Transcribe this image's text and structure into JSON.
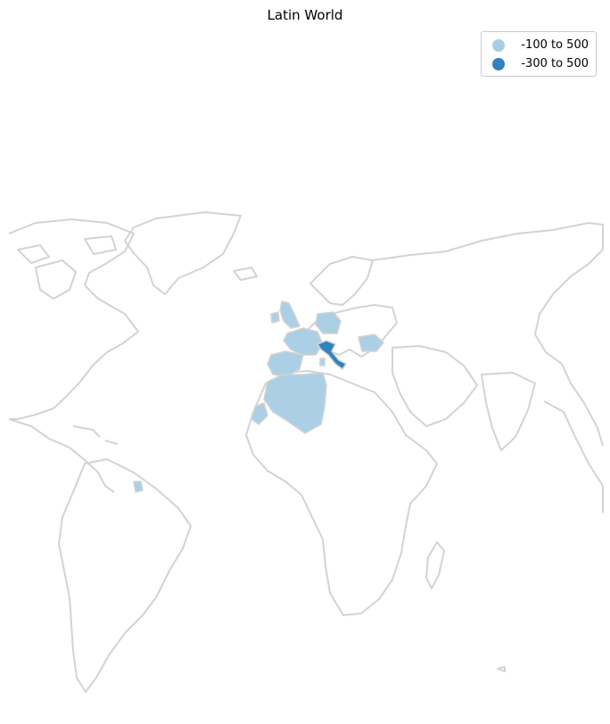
{
  "title": "Latin World",
  "legend": {
    "entries": [
      {
        "label": "-100 to 500",
        "color": "#a6cee3"
      },
      {
        "label": "-300 to 500",
        "color": "#3182bd"
      }
    ]
  },
  "colors": {
    "outline": "#d3d3d3",
    "category_light": "#abd0e6",
    "category_dark": "#3182bd"
  },
  "highlighted_countries": [
    {
      "name": "France",
      "category": "-100 to 500"
    },
    {
      "name": "Spain",
      "category": "-100 to 500"
    },
    {
      "name": "Portugal",
      "category": "-100 to 500"
    },
    {
      "name": "United Kingdom",
      "category": "-100 to 500"
    },
    {
      "name": "Germany",
      "category": "-100 to 500"
    },
    {
      "name": "Romania",
      "category": "-100 to 500"
    },
    {
      "name": "Algeria",
      "category": "-100 to 500"
    },
    {
      "name": "Morocco",
      "category": "-100 to 500"
    },
    {
      "name": "Western Sahara",
      "category": "-100 to 500"
    },
    {
      "name": "French Guiana",
      "category": "-100 to 500"
    },
    {
      "name": "Sardinia",
      "category": "-100 to 500"
    },
    {
      "name": "Italy",
      "category": "-300 to 500"
    }
  ]
}
